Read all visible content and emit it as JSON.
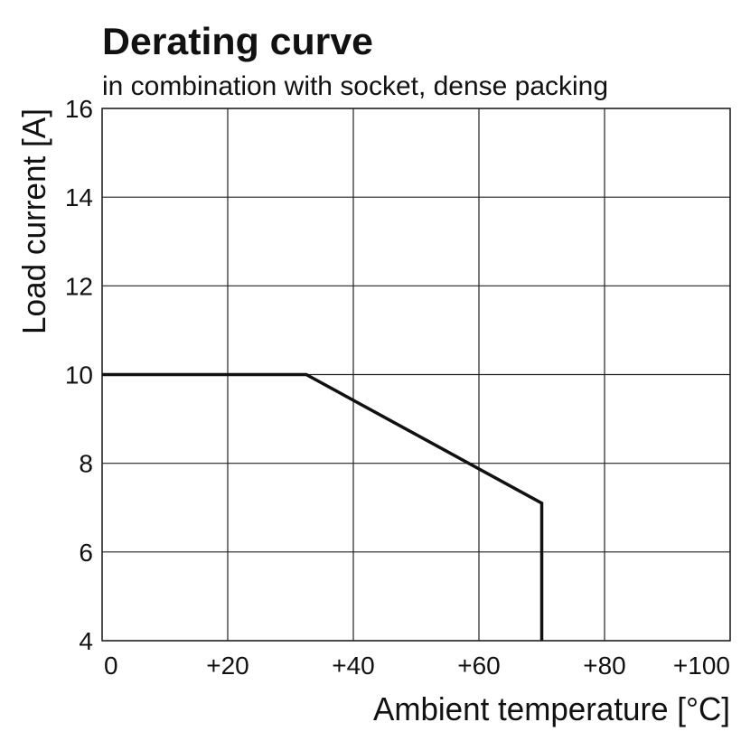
{
  "chart_data": {
    "type": "line",
    "title": "Derating curve",
    "subtitle": "in combination with socket, dense packing",
    "x_label": "Ambient temperature [°C]",
    "y_label": "Load current [A]",
    "x": [
      0,
      32.5,
      70,
      70
    ],
    "series": [
      {
        "color": "#111111",
        "values": [
          10,
          10,
          7.1,
          4
        ]
      }
    ],
    "xlim": [
      0,
      100
    ],
    "xticks": [
      0,
      {
        "value": 20,
        "label": "+20"
      },
      {
        "value": 40,
        "label": "+40"
      },
      {
        "value": 60,
        "label": "+60"
      },
      {
        "value": 80,
        "label": "+80"
      },
      {
        "value": 100,
        "label": "+100"
      }
    ],
    "ylim": [
      4,
      16
    ],
    "yticks": [
      4,
      6,
      8,
      10,
      12,
      14,
      16
    ],
    "grid": true
  }
}
